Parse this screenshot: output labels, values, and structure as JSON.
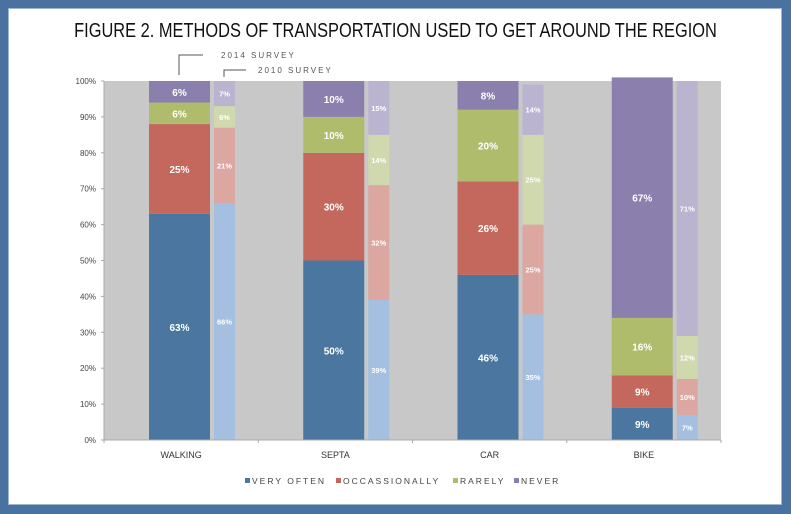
{
  "chart_data": {
    "type": "bar",
    "stacked": true,
    "title": "FIGURE 2. METHODS OF TRANSPORTATION USED TO GET AROUND THE REGION",
    "xlabel": "",
    "ylabel": "",
    "ylim": [
      0,
      100
    ],
    "yticks": [
      "0%",
      "10%",
      "20%",
      "30%",
      "40%",
      "50%",
      "60%",
      "70%",
      "80%",
      "90%",
      "100%"
    ],
    "categories": [
      "WALKING",
      "SEPTA",
      "CAR",
      "BIKE"
    ],
    "annotations": [
      "2014 SURVEY",
      "2010 SURVEY"
    ],
    "legend_position": "bottom",
    "series_names": [
      "VERY OFTEN",
      "OCCASSIONALLY",
      "RARELY",
      "NEVER"
    ],
    "colors_2014": [
      "#4a76a0",
      "#c4685e",
      "#afbc6c",
      "#8b80ad"
    ],
    "colors_2010": [
      "#a4bfdf",
      "#dca7a1",
      "#d0d8ad",
      "#bab4d1"
    ],
    "series": [
      {
        "name": "VERY OFTEN",
        "survey": "2014",
        "values": [
          63,
          50,
          46,
          9
        ]
      },
      {
        "name": "OCCASSIONALLY",
        "survey": "2014",
        "values": [
          25,
          30,
          26,
          9
        ]
      },
      {
        "name": "RARELY",
        "survey": "2014",
        "values": [
          6,
          10,
          20,
          16
        ]
      },
      {
        "name": "NEVER",
        "survey": "2014",
        "values": [
          6,
          10,
          8,
          67
        ]
      },
      {
        "name": "VERY OFTEN",
        "survey": "2010",
        "values": [
          66,
          39,
          35,
          7
        ]
      },
      {
        "name": "OCCASSIONALLY",
        "survey": "2010",
        "values": [
          21,
          32,
          25,
          10
        ]
      },
      {
        "name": "RARELY",
        "survey": "2010",
        "values": [
          6,
          14,
          25,
          12
        ]
      },
      {
        "name": "NEVER",
        "survey": "2010",
        "values": [
          7,
          15,
          14,
          71
        ]
      }
    ],
    "grid": false,
    "plot_background": "#c8c8c8"
  },
  "frame_color": "#4a72a0"
}
